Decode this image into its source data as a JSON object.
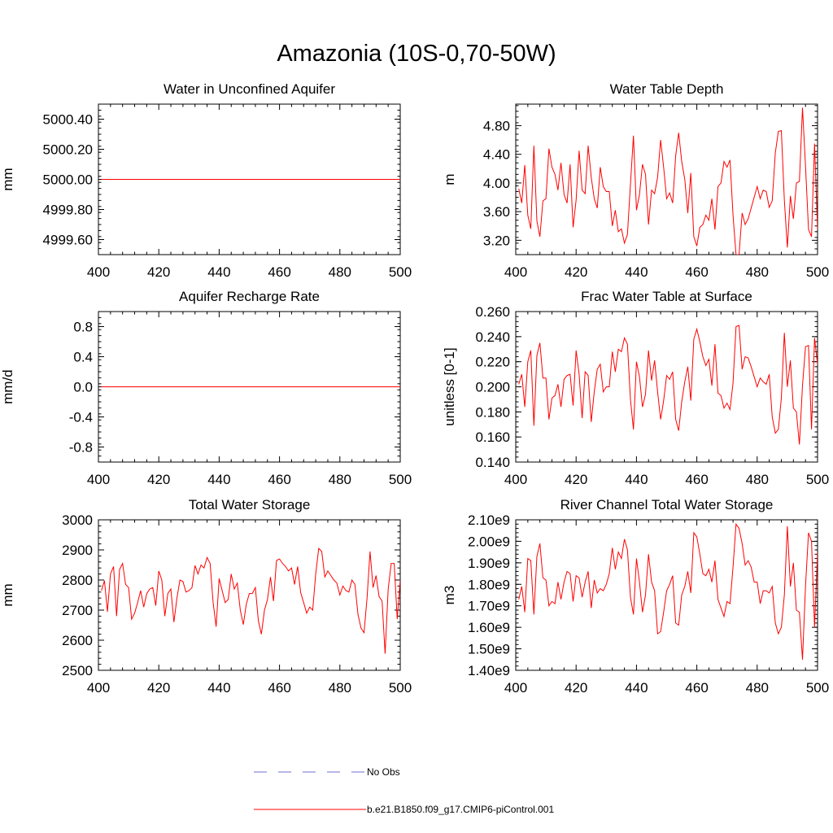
{
  "page": {
    "title": "Amazonia (10S-0,70-50W)"
  },
  "colors": {
    "series": "#ff0000",
    "obs": "#6f6fd0",
    "axis": "#000000"
  },
  "legend": {
    "items": [
      {
        "label": "No Obs",
        "style": "dashed",
        "color": "#6f6fd0"
      },
      {
        "label": "b.e21.B1850.f09_g17.CMIP6-piControl.001",
        "style": "solid",
        "color": "#ff0000"
      }
    ]
  },
  "chart_data": [
    {
      "type": "line",
      "title": "Water in Unconfined Aquifer",
      "ylabel": "mm",
      "xlim": [
        400,
        500
      ],
      "ylim": [
        4999.5,
        5000.5
      ],
      "xticks": [
        400,
        420,
        440,
        460,
        480,
        500
      ],
      "yticks": [
        "4999.60",
        "4999.80",
        "5000.00",
        "5000.20",
        "5000.40"
      ],
      "x_start": 401,
      "series": [
        {
          "values": [
            5000,
            5000,
            5000,
            5000,
            5000,
            5000,
            5000,
            5000,
            5000,
            5000,
            5000,
            5000,
            5000,
            5000,
            5000,
            5000,
            5000,
            5000,
            5000,
            5000,
            5000,
            5000,
            5000,
            5000,
            5000,
            5000,
            5000,
            5000,
            5000,
            5000,
            5000,
            5000,
            5000,
            5000,
            5000,
            5000,
            5000,
            5000,
            5000,
            5000,
            5000,
            5000,
            5000,
            5000,
            5000,
            5000,
            5000,
            5000,
            5000,
            5000,
            5000,
            5000,
            5000,
            5000,
            5000,
            5000,
            5000,
            5000,
            5000,
            5000,
            5000,
            5000,
            5000,
            5000,
            5000,
            5000,
            5000,
            5000,
            5000,
            5000,
            5000,
            5000,
            5000,
            5000,
            5000,
            5000,
            5000,
            5000,
            5000,
            5000,
            5000,
            5000,
            5000,
            5000,
            5000,
            5000,
            5000,
            5000,
            5000,
            5000,
            5000,
            5000,
            5000,
            5000,
            5000,
            5000,
            5000,
            5000,
            5000,
            5000
          ]
        }
      ]
    },
    {
      "type": "line",
      "title": "Water Table Depth",
      "ylabel": "m",
      "xlim": [
        400,
        500
      ],
      "ylim": [
        3.0,
        5.1
      ],
      "xticks": [
        400,
        420,
        440,
        460,
        480,
        500
      ],
      "yticks": [
        "3.20",
        "3.60",
        "4.00",
        "4.40",
        "4.80"
      ],
      "x_start": 401,
      "series": [
        {
          "values": [
            3.92,
            3.72,
            4.25,
            3.55,
            3.36,
            4.52,
            3.47,
            3.25,
            3.75,
            3.78,
            4.48,
            4.22,
            4.12,
            3.9,
            4.28,
            3.84,
            3.72,
            4.26,
            3.38,
            3.76,
            4.45,
            3.9,
            3.85,
            4.52,
            4.08,
            3.78,
            3.65,
            4.22,
            3.95,
            3.88,
            3.88,
            3.4,
            3.62,
            3.32,
            3.36,
            3.16,
            3.28,
            3.98,
            4.66,
            3.62,
            3.84,
            4.26,
            4.12,
            3.42,
            3.9,
            3.85,
            4.08,
            4.6,
            4.22,
            3.78,
            3.86,
            3.72,
            4.38,
            4.7,
            4.3,
            4.05,
            3.58,
            4.14,
            3.25,
            3.12,
            3.38,
            3.42,
            3.55,
            3.48,
            3.78,
            3.35,
            3.95,
            4.0,
            4.3,
            4.22,
            4.32,
            3.55,
            3.0,
            3.0,
            3.58,
            3.42,
            3.5,
            3.65,
            3.8,
            3.95,
            3.78,
            3.9,
            3.88,
            3.66,
            3.75,
            4.42,
            4.72,
            4.73,
            3.76,
            3.1,
            3.82,
            3.5,
            4.0,
            4.02,
            5.05,
            4.24,
            3.35,
            3.25,
            4.55,
            3.35
          ]
        }
      ]
    },
    {
      "type": "line",
      "title": "Aquifer Recharge Rate",
      "ylabel": "mm/d",
      "xlim": [
        400,
        500
      ],
      "ylim": [
        -1.0,
        1.0
      ],
      "xticks": [
        400,
        420,
        440,
        460,
        480,
        500
      ],
      "yticks": [
        "-0.8",
        "-0.4",
        "0.0",
        "0.4",
        "0.8"
      ],
      "x_start": 401,
      "series": [
        {
          "values": [
            0,
            0,
            0,
            0,
            0,
            0,
            0,
            0,
            0,
            0,
            0,
            0,
            0,
            0,
            0,
            0,
            0,
            0,
            0,
            0,
            0,
            0,
            0,
            0,
            0,
            0,
            0,
            0,
            0,
            0,
            0,
            0,
            0,
            0,
            0,
            0,
            0,
            0,
            0,
            0,
            0,
            0,
            0,
            0,
            0,
            0,
            0,
            0,
            0,
            0,
            0,
            0,
            0,
            0,
            0,
            0,
            0,
            0,
            0,
            0,
            0,
            0,
            0,
            0,
            0,
            0,
            0,
            0,
            0,
            0,
            0,
            0,
            0,
            0,
            0,
            0,
            0,
            0,
            0,
            0,
            0,
            0,
            0,
            0,
            0,
            0,
            0,
            0,
            0,
            0,
            0,
            0,
            0,
            0,
            0,
            0,
            0,
            0,
            0,
            0
          ]
        }
      ]
    },
    {
      "type": "line",
      "title": "Frac Water Table at Surface",
      "ylabel": "unitless [0-1]",
      "xlim": [
        400,
        500
      ],
      "ylim": [
        0.14,
        0.26
      ],
      "xticks": [
        400,
        420,
        440,
        460,
        480,
        500
      ],
      "yticks": [
        "0.140",
        "0.160",
        "0.180",
        "0.200",
        "0.220",
        "0.240",
        "0.260"
      ],
      "x_start": 401,
      "series": [
        {
          "values": [
            0.202,
            0.21,
            0.184,
            0.22,
            0.229,
            0.169,
            0.225,
            0.235,
            0.207,
            0.207,
            0.174,
            0.191,
            0.193,
            0.202,
            0.184,
            0.206,
            0.209,
            0.21,
            0.185,
            0.229,
            0.21,
            0.175,
            0.212,
            0.209,
            0.172,
            0.196,
            0.214,
            0.218,
            0.196,
            0.2,
            0.2,
            0.228,
            0.212,
            0.23,
            0.228,
            0.239,
            0.234,
            0.19,
            0.166,
            0.22,
            0.208,
            0.184,
            0.194,
            0.229,
            0.205,
            0.221,
            0.196,
            0.174,
            0.189,
            0.209,
            0.206,
            0.212,
            0.174,
            0.165,
            0.188,
            0.204,
            0.216,
            0.189,
            0.238,
            0.246,
            0.236,
            0.224,
            0.217,
            0.222,
            0.201,
            0.234,
            0.195,
            0.193,
            0.183,
            0.187,
            0.182,
            0.203,
            0.248,
            0.249,
            0.214,
            0.224,
            0.223,
            0.216,
            0.208,
            0.2,
            0.207,
            0.204,
            0.202,
            0.21,
            0.176,
            0.163,
            0.166,
            0.191,
            0.243,
            0.2,
            0.221,
            0.183,
            0.18,
            0.154,
            0.201,
            0.232,
            0.233,
            0.166,
            0.239,
            0.218
          ]
        }
      ]
    },
    {
      "type": "line",
      "title": "Total Water Storage",
      "ylabel": "mm",
      "xlim": [
        400,
        500
      ],
      "ylim": [
        2500,
        3000
      ],
      "xticks": [
        400,
        420,
        440,
        460,
        480,
        500
      ],
      "yticks": [
        "2500",
        "2600",
        "2700",
        "2800",
        "2900",
        "3000"
      ],
      "x_start": 401,
      "series": [
        {
          "values": [
            2765,
            2798,
            2695,
            2820,
            2845,
            2680,
            2835,
            2855,
            2785,
            2775,
            2670,
            2690,
            2725,
            2765,
            2710,
            2755,
            2770,
            2775,
            2715,
            2830,
            2800,
            2680,
            2755,
            2770,
            2660,
            2740,
            2800,
            2795,
            2760,
            2765,
            2775,
            2848,
            2820,
            2850,
            2840,
            2875,
            2855,
            2725,
            2645,
            2805,
            2765,
            2725,
            2735,
            2820,
            2770,
            2790,
            2700,
            2652,
            2720,
            2755,
            2755,
            2775,
            2665,
            2620,
            2700,
            2735,
            2810,
            2730,
            2865,
            2870,
            2855,
            2845,
            2830,
            2840,
            2785,
            2845,
            2758,
            2725,
            2690,
            2710,
            2700,
            2820,
            2905,
            2895,
            2810,
            2830,
            2815,
            2800,
            2790,
            2750,
            2780,
            2765,
            2760,
            2800,
            2785,
            2685,
            2640,
            2625,
            2740,
            2895,
            2775,
            2815,
            2745,
            2730,
            2555,
            2770,
            2855,
            2855,
            2670,
            2800
          ]
        }
      ]
    },
    {
      "type": "line",
      "title": "River Channel Total Water Storage",
      "ylabel": "m3",
      "xlim": [
        400,
        500
      ],
      "ylim": [
        1.4,
        2.1
      ],
      "xticks": [
        400,
        420,
        440,
        460,
        480,
        500
      ],
      "yticks": [
        "1.40e9",
        "1.50e9",
        "1.60e9",
        "1.70e9",
        "1.80e9",
        "1.90e9",
        "2.00e9",
        "2.10e9"
      ],
      "y_unit_note": "values in units of 1e9 m3",
      "x_start": 401,
      "series": [
        {
          "values": [
            1.73,
            1.79,
            1.67,
            1.92,
            1.91,
            1.66,
            1.93,
            1.99,
            1.83,
            1.82,
            1.7,
            1.72,
            1.71,
            1.81,
            1.73,
            1.81,
            1.86,
            1.85,
            1.72,
            1.84,
            1.83,
            1.74,
            1.81,
            1.86,
            1.69,
            1.82,
            1.76,
            1.78,
            1.77,
            1.8,
            1.85,
            1.97,
            1.87,
            1.95,
            1.92,
            2.01,
            1.96,
            1.74,
            1.66,
            1.92,
            1.81,
            1.67,
            1.75,
            1.94,
            1.81,
            1.77,
            1.57,
            1.58,
            1.67,
            1.77,
            1.8,
            1.84,
            1.62,
            1.61,
            1.75,
            1.79,
            1.86,
            1.76,
            2.04,
            2.02,
            1.94,
            1.85,
            1.84,
            1.87,
            1.81,
            1.91,
            1.73,
            1.69,
            1.65,
            1.72,
            1.71,
            1.88,
            2.08,
            2.06,
            1.99,
            1.89,
            1.91,
            1.88,
            1.81,
            1.81,
            1.71,
            1.77,
            1.77,
            1.76,
            1.79,
            1.62,
            1.57,
            1.6,
            1.75,
            2.07,
            1.79,
            1.9,
            1.68,
            1.67,
            1.45,
            1.79,
            2.04,
            2.0,
            1.6,
            1.95
          ]
        }
      ]
    }
  ]
}
